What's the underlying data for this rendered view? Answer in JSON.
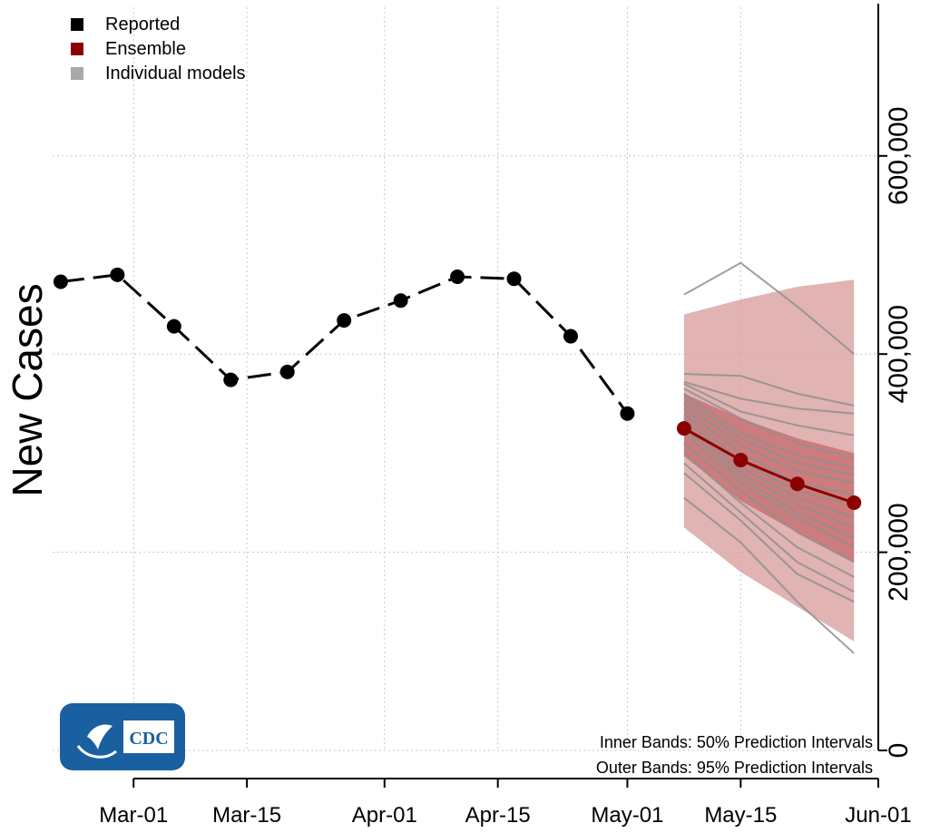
{
  "chart_data": {
    "type": "line",
    "ylabel": "New Cases",
    "ylim": [
      0,
      750000
    ],
    "yticks": [
      0,
      200000,
      400000,
      600000
    ],
    "ytick_labels": [
      "0",
      "200,000",
      "400,000",
      "600,000"
    ],
    "xlim": [
      "2021-02-19",
      "2021-06-01"
    ],
    "xticks": [
      "2021-03-01",
      "2021-03-15",
      "2021-04-01",
      "2021-04-15",
      "2021-05-01",
      "2021-05-15",
      "2021-06-01"
    ],
    "xtick_labels": [
      "Mar-01",
      "Mar-15",
      "Apr-01",
      "Apr-15",
      "May-01",
      "May-15",
      "Jun-01"
    ],
    "grid": true,
    "legend": [
      {
        "label": "Reported",
        "color": "#000000"
      },
      {
        "label": "Ensemble",
        "color": "#8b0000"
      },
      {
        "label": "Individual models",
        "color": "#a9a9a9"
      }
    ],
    "legend_position": "top-left",
    "annotations": [
      "Inner Bands: 50% Prediction Intervals",
      "Outer Bands: 95% Prediction Intervals"
    ],
    "reported": {
      "x": [
        "2021-02-20",
        "2021-02-27",
        "2021-03-06",
        "2021-03-13",
        "2021-03-20",
        "2021-03-27",
        "2021-04-03",
        "2021-04-10",
        "2021-04-17",
        "2021-04-24",
        "2021-05-01"
      ],
      "y": [
        473000,
        480000,
        428000,
        374000,
        382000,
        434000,
        454000,
        478000,
        476000,
        418000,
        340000
      ]
    },
    "ensemble": {
      "x": [
        "2021-05-08",
        "2021-05-15",
        "2021-05-22",
        "2021-05-29"
      ],
      "median": [
        325000,
        293000,
        269000,
        250000
      ],
      "inner_lower": [
        297000,
        252000,
        220000,
        190000
      ],
      "inner_upper": [
        360000,
        335000,
        315000,
        300000
      ],
      "outer_lower": [
        225000,
        180000,
        145000,
        110000
      ],
      "outer_upper": [
        440000,
        455000,
        468000,
        475000
      ]
    },
    "individual_models": [
      [
        460000,
        492000,
        448000,
        400000
      ],
      [
        380000,
        378000,
        360000,
        348000
      ],
      [
        372000,
        355000,
        345000,
        340000
      ],
      [
        370000,
        342000,
        328000,
        318000
      ],
      [
        365000,
        335000,
        310000,
        295000
      ],
      [
        360000,
        320000,
        298000,
        285000
      ],
      [
        355000,
        315000,
        290000,
        278000
      ],
      [
        350000,
        308000,
        282000,
        270000
      ],
      [
        345000,
        300000,
        270000,
        258000
      ],
      [
        340000,
        292000,
        262000,
        248000
      ],
      [
        335000,
        285000,
        255000,
        235000
      ],
      [
        330000,
        280000,
        248000,
        225000
      ],
      [
        325000,
        275000,
        240000,
        215000
      ],
      [
        320000,
        270000,
        235000,
        205000
      ],
      [
        310000,
        262000,
        220000,
        190000
      ],
      [
        300000,
        250000,
        205000,
        175000
      ],
      [
        290000,
        240000,
        190000,
        160000
      ],
      [
        280000,
        232000,
        178000,
        150000
      ],
      [
        255000,
        210000,
        150000,
        98000
      ]
    ]
  }
}
